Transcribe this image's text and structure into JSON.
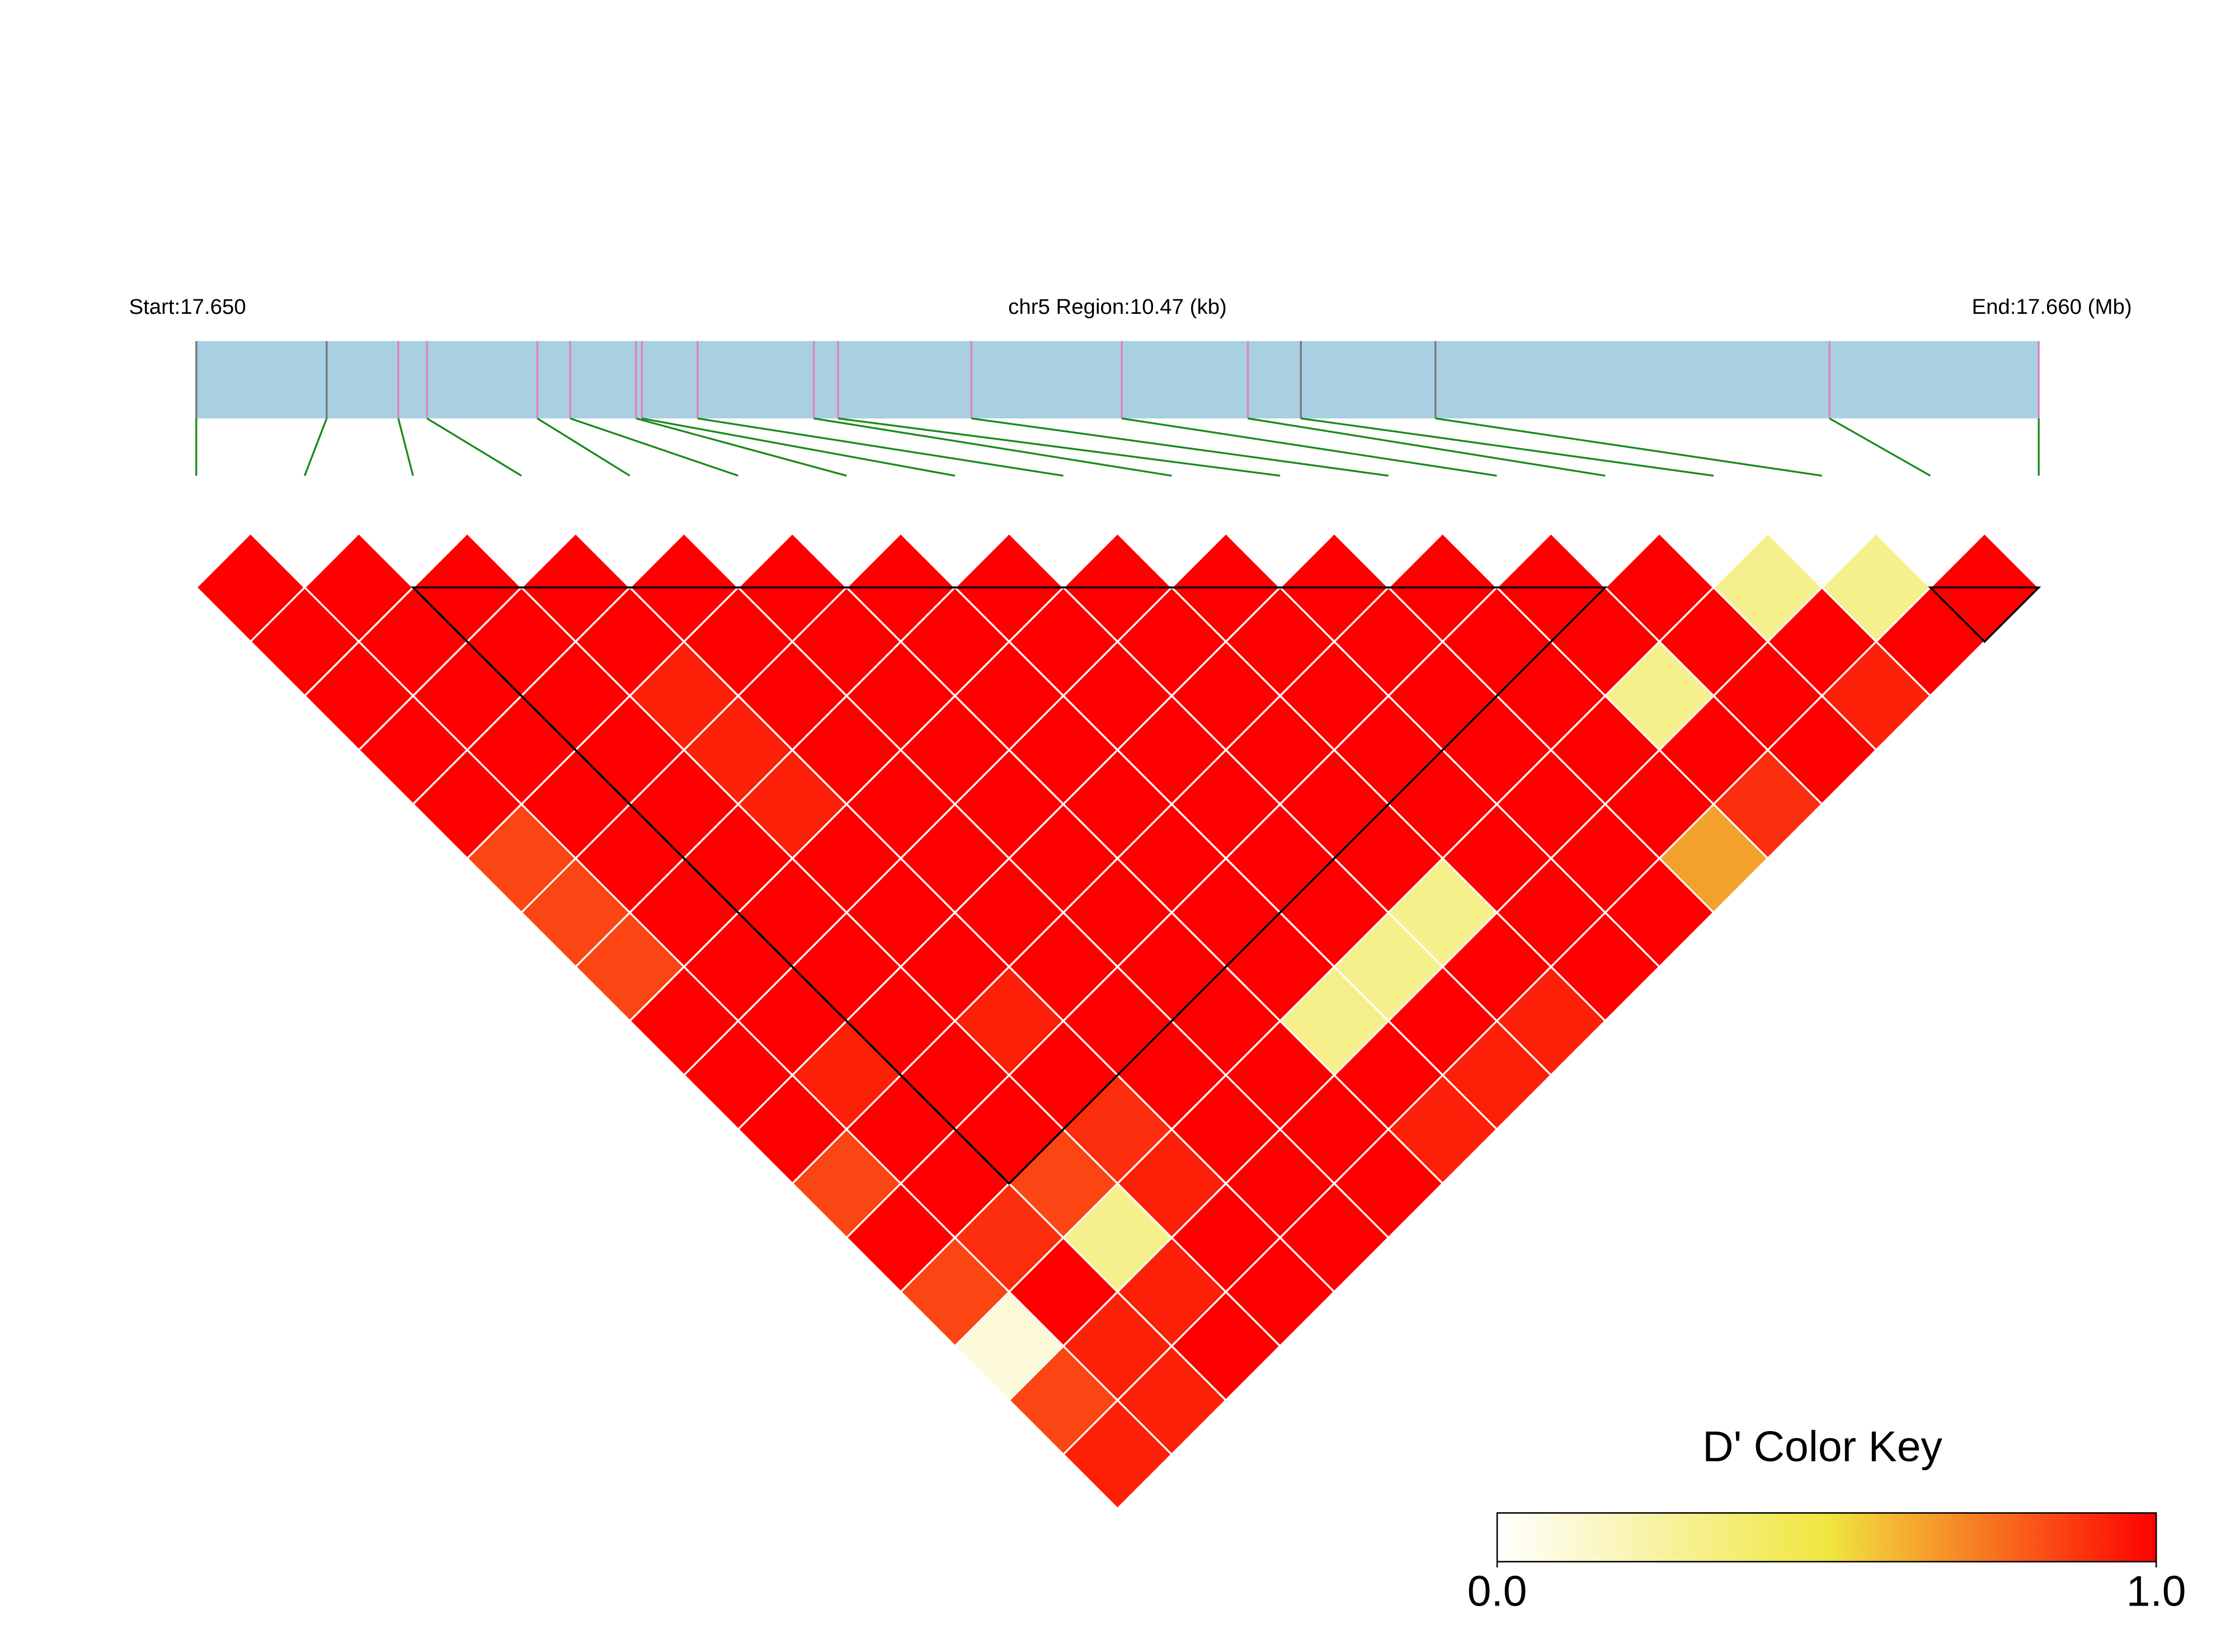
{
  "chart_data": {
    "type": "ld_heatmap",
    "start_label": "Start:17.650",
    "region_label": "chr5 Region:10.47 (kb)",
    "end_label": "End:17.660 (Mb)",
    "key_title": "D' Color Key",
    "xlim": [
      0,
      10.47
    ],
    "snp_positions": [
      0,
      0.741,
      1.148,
      1.311,
      1.938,
      2.125,
      2.499,
      2.532,
      2.849,
      3.509,
      3.647,
      4.405,
      5.259,
      5.976,
      6.277,
      7.042,
      9.281,
      10.47
    ],
    "marker_colors": [
      "#777777",
      "#777777",
      "#e080c0",
      "#e080c0",
      "#e080c0",
      "#e080c0",
      "#e080c0",
      "#e080c0",
      "#e080c0",
      "#e080c0",
      "#e080c0",
      "#e080c0",
      "#e080c0",
      "#e080c0",
      "#777777",
      "#777777",
      "#e080c0",
      "#e080c0"
    ],
    "gene_bar_color": "#a8cfe2",
    "connector_color": "#1a8a1a",
    "dprime": [
      [
        1,
        1,
        1,
        1,
        1,
        1,
        1,
        1,
        1,
        1,
        1,
        1,
        1,
        1,
        0.3,
        0.3,
        1
      ],
      [
        1,
        1,
        1,
        1,
        1,
        1,
        1,
        1,
        1,
        1,
        1,
        1,
        1,
        1,
        1,
        1
      ],
      [
        1,
        1,
        1,
        0.93,
        1,
        1,
        1,
        1,
        1,
        1,
        1,
        1,
        0.3,
        1,
        0.93
      ],
      [
        1,
        1,
        1,
        0.93,
        1,
        1,
        1,
        1,
        1,
        1,
        1,
        1,
        1,
        1
      ],
      [
        1,
        1,
        1,
        0.93,
        1,
        1,
        1,
        1,
        1,
        1,
        1,
        1,
        0.9
      ],
      [
        0.85,
        1,
        1,
        1,
        1,
        1,
        1,
        1,
        1,
        1,
        1,
        0.65
      ],
      [
        0.85,
        1,
        1,
        1,
        1,
        1,
        1,
        1,
        0.3,
        1,
        1
      ],
      [
        0.85,
        1,
        1,
        1,
        1,
        1,
        1,
        0.3,
        1,
        1
      ],
      [
        1,
        1,
        1,
        0.93,
        1,
        1,
        0.3,
        1,
        0.93
      ],
      [
        1,
        0.93,
        1,
        1,
        1,
        1,
        1,
        0.93
      ],
      [
        1,
        1,
        1,
        0.9,
        1,
        1,
        0.93
      ],
      [
        0.85,
        1,
        0.85,
        0.93,
        1,
        1
      ],
      [
        1,
        0.9,
        0.3,
        1,
        1
      ],
      [
        0.85,
        1,
        0.93,
        1
      ],
      [
        0.1,
        0.93,
        1
      ],
      [
        0.85,
        0.93
      ],
      [
        0.93
      ]
    ],
    "blocks": [
      [
        2,
        13
      ],
      [
        16,
        17
      ]
    ],
    "colorscale": [
      [
        0,
        "#ffffff"
      ],
      [
        0.5,
        "#f0e640"
      ],
      [
        1,
        "#ff0000"
      ]
    ],
    "key_lim": [
      0,
      1
    ],
    "key_ticks": [
      {
        "value": 0,
        "label": "0.0"
      },
      {
        "value": 1,
        "label": "1.0"
      }
    ]
  }
}
